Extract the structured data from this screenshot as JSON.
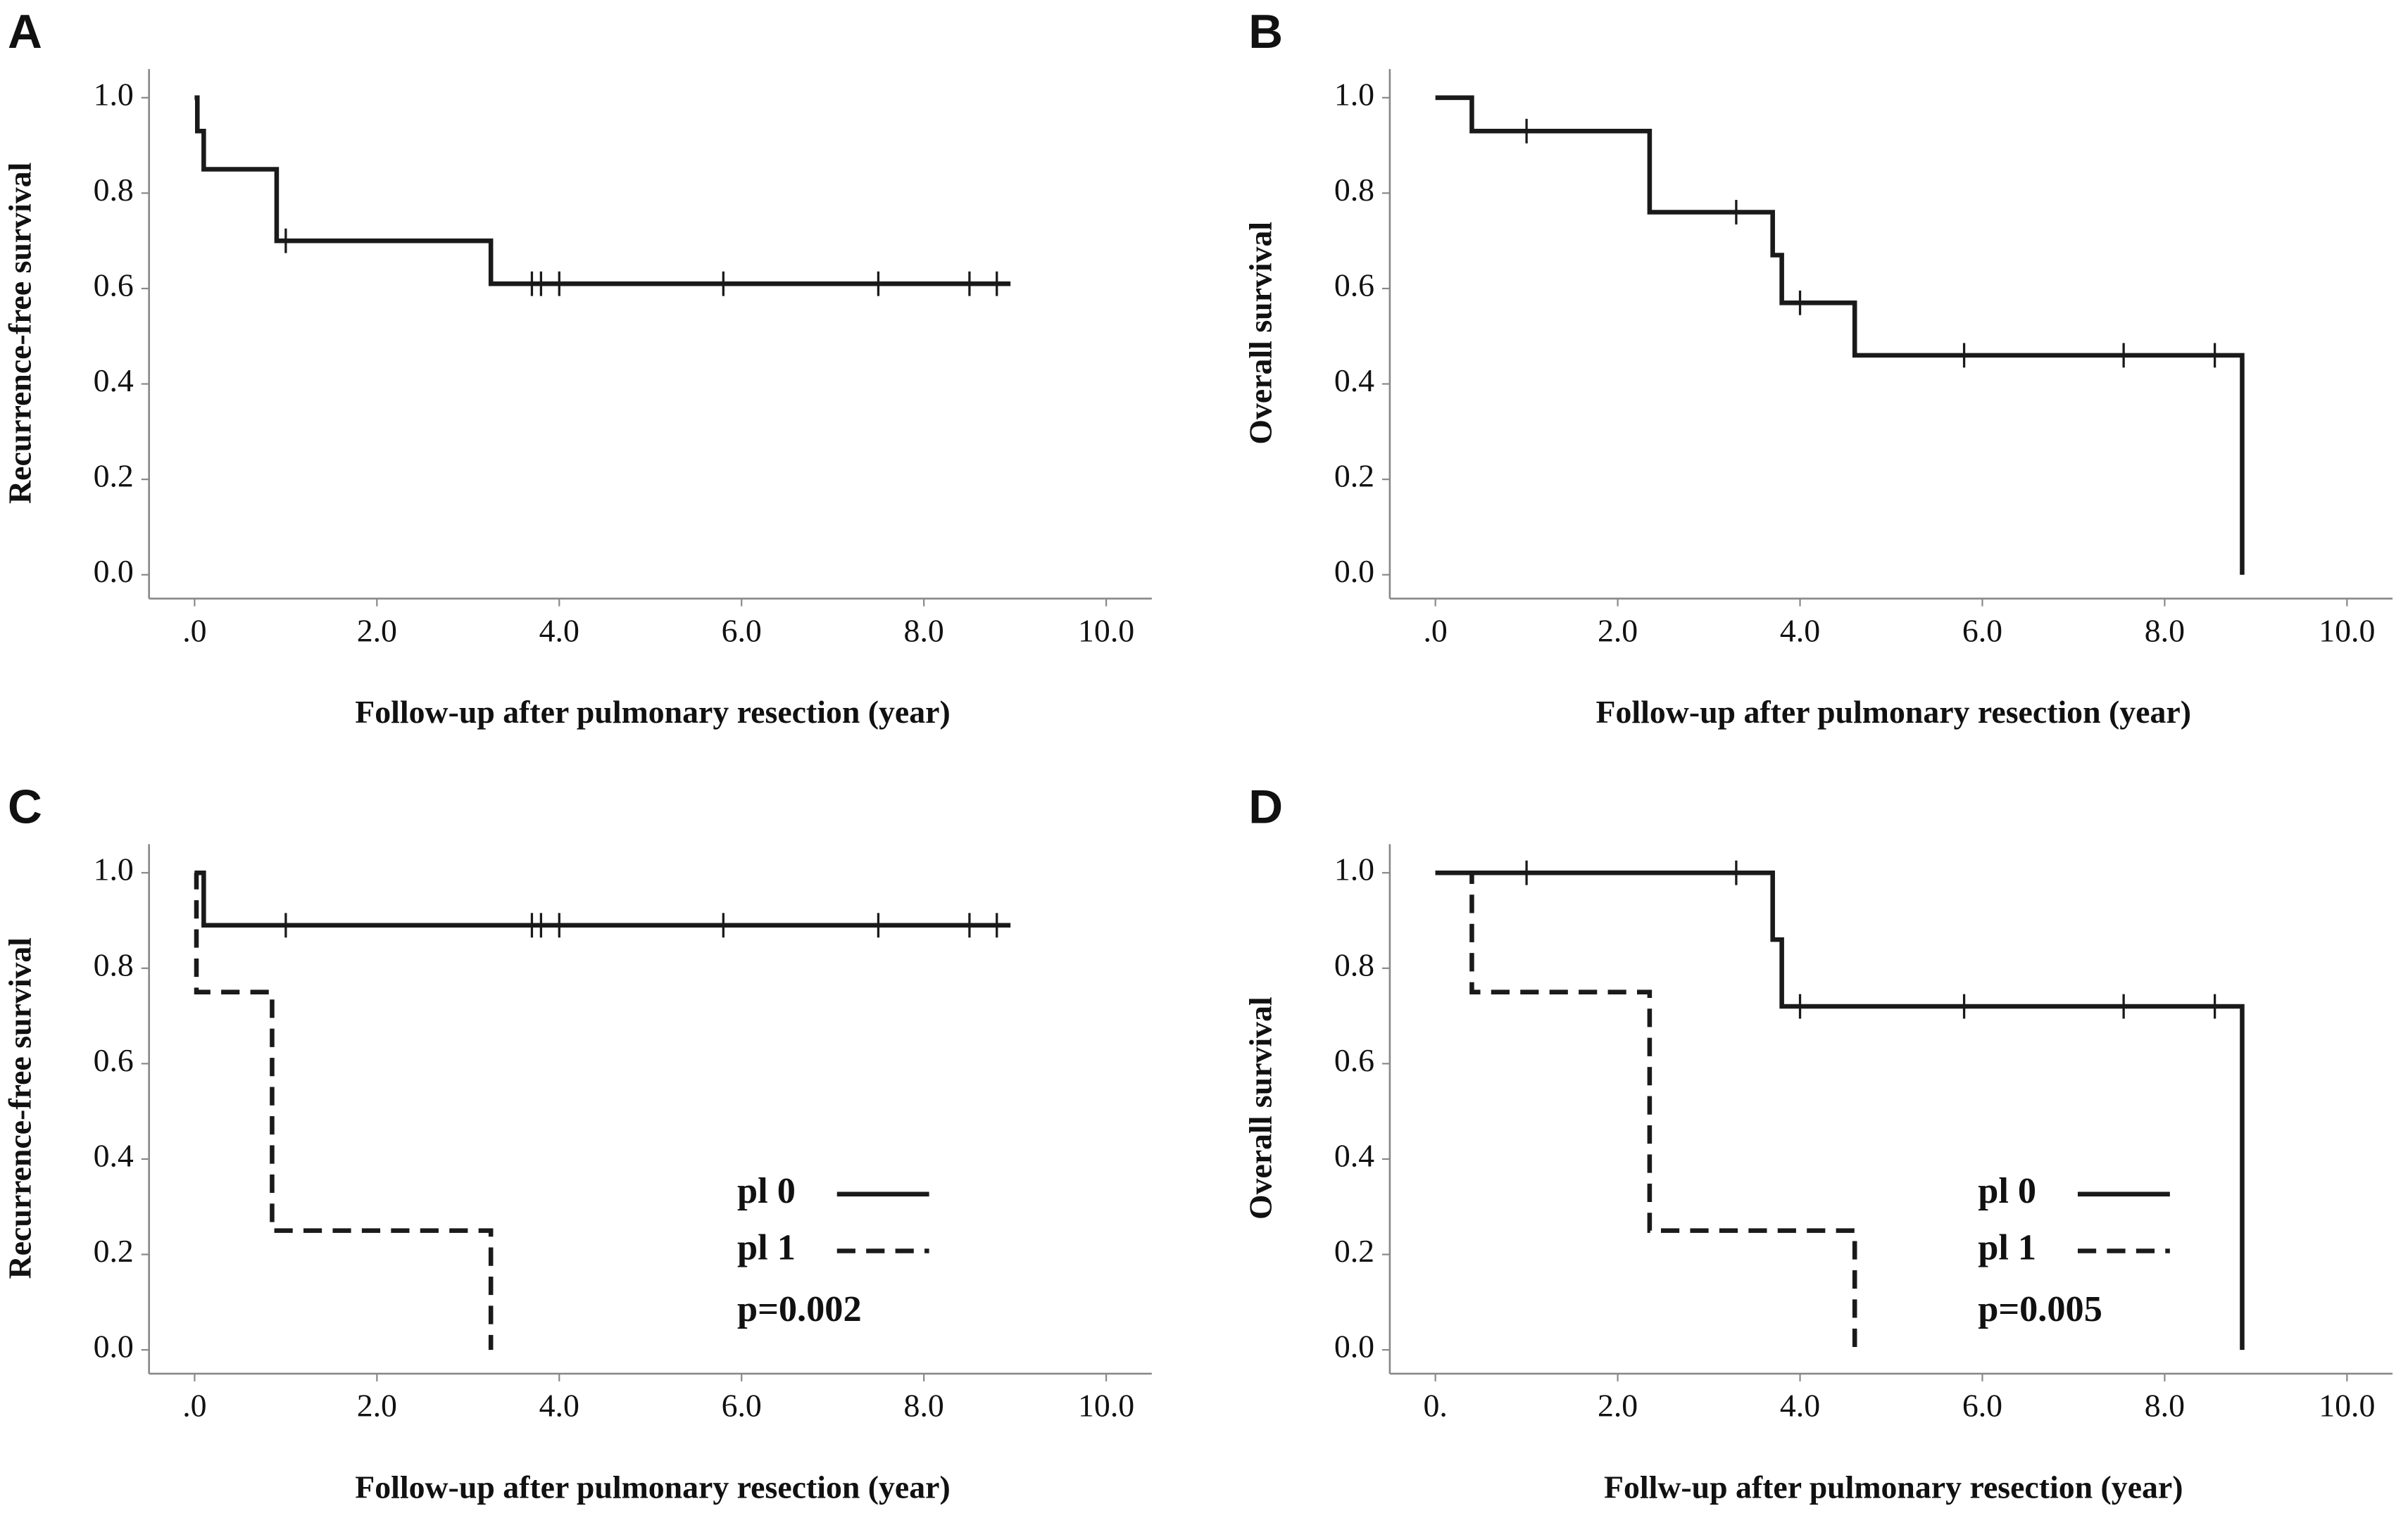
{
  "chart_data": [
    {
      "type": "line",
      "panel_label": "A",
      "x_label": "Follow-up after pulmonary resection (year)",
      "y_label": "Recurrence-free survival",
      "xlim": [
        -0.5,
        10.5
      ],
      "ylim": [
        -0.05,
        1.06
      ],
      "xticks": [
        {
          "value": 0,
          "label": ".0"
        },
        {
          "value": 2,
          "label": "2.0"
        },
        {
          "value": 4,
          "label": "4.0"
        },
        {
          "value": 6,
          "label": "6.0"
        },
        {
          "value": 8,
          "label": "8.0"
        },
        {
          "value": 10,
          "label": "10.0"
        }
      ],
      "yticks": [
        {
          "value": 0,
          "label": "0.0"
        },
        0.2,
        0.4,
        0.6,
        0.8,
        {
          "value": 1,
          "label": "1.0"
        }
      ],
      "series": [
        {
          "color": "#1a1a1a",
          "dash": "solid",
          "x": [
            0,
            0.03,
            0.1,
            0.9,
            3.25,
            8.95
          ],
          "values": [
            1,
            0.93,
            0.85,
            0.7,
            0.61,
            0.61
          ],
          "censor_x": [
            1.0,
            3.7,
            3.8,
            4.0,
            5.8,
            7.5,
            8.5,
            8.8
          ],
          "censor_y": [
            0.7,
            0.61,
            0.61,
            0.61,
            0.61,
            0.61,
            0.61,
            0.61
          ]
        }
      ]
    },
    {
      "type": "line",
      "panel_label": "B",
      "x_label": "Follow-up after pulmonary resection (year)",
      "y_label": "Overall survival",
      "xlim": [
        -0.5,
        10.5
      ],
      "ylim": [
        -0.05,
        1.06
      ],
      "xticks": [
        {
          "value": 0,
          "label": ".0"
        },
        {
          "value": 2,
          "label": "2.0"
        },
        {
          "value": 4,
          "label": "4.0"
        },
        {
          "value": 6,
          "label": "6.0"
        },
        {
          "value": 8,
          "label": "8.0"
        },
        {
          "value": 10,
          "label": "10.0"
        }
      ],
      "yticks": [
        {
          "value": 0,
          "label": "0.0"
        },
        0.2,
        0.4,
        0.6,
        0.8,
        {
          "value": 1,
          "label": "1.0"
        }
      ],
      "series": [
        {
          "color": "#1a1a1a",
          "dash": "solid",
          "x": [
            0,
            0.4,
            2.35,
            3.7,
            3.8,
            4.6,
            8.85
          ],
          "values": [
            1,
            0.93,
            0.76,
            0.67,
            0.57,
            0.46,
            0
          ],
          "censor_x": [
            1.0,
            3.3,
            4.0,
            5.8,
            7.55,
            8.55
          ],
          "censor_y": [
            0.93,
            0.76,
            0.57,
            0.46,
            0.46,
            0.46
          ]
        }
      ]
    },
    {
      "type": "line",
      "panel_label": "C",
      "x_label": "Follow-up after pulmonary resection (year)",
      "y_label": "Recurrence-free survival",
      "xlim": [
        -0.5,
        10.5
      ],
      "ylim": [
        -0.05,
        1.06
      ],
      "xticks": [
        {
          "value": 0,
          "label": ".0"
        },
        {
          "value": 2,
          "label": "2.0"
        },
        {
          "value": 4,
          "label": "4.0"
        },
        {
          "value": 6,
          "label": "6.0"
        },
        {
          "value": 8,
          "label": "8.0"
        },
        {
          "value": 10,
          "label": "10.0"
        }
      ],
      "yticks": [
        {
          "value": 0,
          "label": "0.0"
        },
        0.2,
        0.4,
        0.6,
        0.8,
        {
          "value": 1,
          "label": "1.0"
        }
      ],
      "legend": "lower right",
      "annotation": "p=0.002",
      "series": [
        {
          "name": "pl 0",
          "color": "#1a1a1a",
          "dash": "solid",
          "x": [
            0,
            0.1,
            8.95
          ],
          "values": [
            1,
            0.89,
            0.89
          ],
          "censor_x": [
            1.0,
            3.7,
            3.8,
            4.0,
            5.8,
            7.5,
            8.5,
            8.8
          ],
          "censor_y": [
            0.89,
            0.89,
            0.89,
            0.89,
            0.89,
            0.89,
            0.89,
            0.89
          ]
        },
        {
          "name": "pl 1",
          "color": "#1a1a1a",
          "dash": "dashed",
          "x": [
            0,
            0.02,
            0.85,
            3.25
          ],
          "values": [
            1,
            0.75,
            0.25,
            0
          ]
        }
      ]
    },
    {
      "type": "line",
      "panel_label": "D",
      "x_label": "Follw-up after pulmonary resection (year)",
      "y_label": "Overall survival",
      "xlim": [
        -0.5,
        10.5
      ],
      "ylim": [
        -0.05,
        1.06
      ],
      "xticks": [
        {
          "value": 0,
          "label": "0."
        },
        {
          "value": 2,
          "label": "2.0"
        },
        {
          "value": 4,
          "label": "4.0"
        },
        {
          "value": 6,
          "label": "6.0"
        },
        {
          "value": 8,
          "label": "8.0"
        },
        {
          "value": 10,
          "label": "10.0"
        }
      ],
      "yticks": [
        {
          "value": 0,
          "label": "0.0"
        },
        0.2,
        0.4,
        0.6,
        0.8,
        {
          "value": 1,
          "label": "1.0"
        }
      ],
      "legend": "lower right",
      "annotation": "p=0.005",
      "series": [
        {
          "name": "pl 0",
          "color": "#1a1a1a",
          "dash": "solid",
          "x": [
            0,
            3.7,
            3.8,
            8.85
          ],
          "values": [
            1,
            0.86,
            0.72,
            0
          ],
          "censor_x": [
            1.0,
            3.3,
            4.0,
            5.8,
            7.55,
            8.55
          ],
          "censor_y": [
            1,
            1,
            0.72,
            0.72,
            0.72,
            0.72
          ]
        },
        {
          "name": "pl 1",
          "color": "#1a1a1a",
          "dash": "dashed",
          "x": [
            0,
            0.4,
            2.35,
            4.6
          ],
          "values": [
            1,
            0.75,
            0.25,
            0
          ]
        }
      ]
    }
  ]
}
